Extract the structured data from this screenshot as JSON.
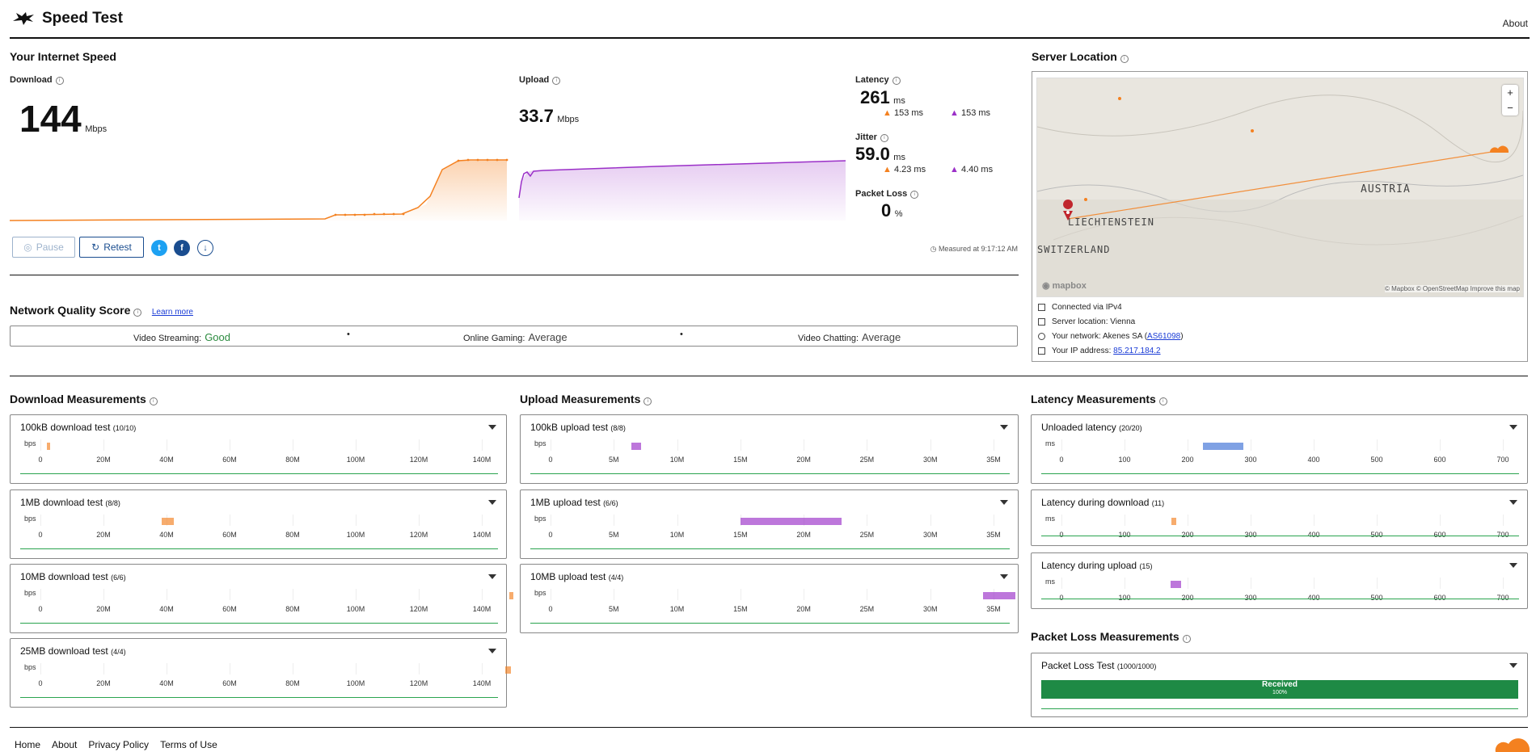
{
  "header": {
    "title": "Speed Test",
    "about": "About"
  },
  "speed": {
    "title": "Your Internet Speed",
    "download": {
      "label": "Download",
      "value": "144",
      "unit": "Mbps"
    },
    "upload": {
      "label": "Upload",
      "value": "33.7",
      "unit": "Mbps"
    },
    "latency": {
      "label": "Latency",
      "value": "261",
      "unit": "ms",
      "down": "153 ms",
      "up": "153 ms"
    },
    "jitter": {
      "label": "Jitter",
      "value": "59.0",
      "unit": "ms",
      "down": "4.23 ms",
      "up": "4.40 ms"
    },
    "packet_loss": {
      "label": "Packet Loss",
      "value": "0",
      "unit": "%"
    },
    "buttons": {
      "pause": "Pause",
      "retest": "Retest"
    },
    "measured_at": "Measured at 9:17:12 AM",
    "colors": {
      "download": "#f48120",
      "upload": "#9b30c8"
    }
  },
  "nqs": {
    "title": "Network Quality Score",
    "learn_more": "Learn more",
    "items": [
      {
        "label": "Video Streaming:",
        "value": "Good",
        "color": "#2a8a3e"
      },
      {
        "label": "Online Gaming:",
        "value": "Average",
        "color": "#444444"
      },
      {
        "label": "Video Chatting:",
        "value": "Average",
        "color": "#444444"
      }
    ]
  },
  "server": {
    "title": "Server Location",
    "map": {
      "austria": "AUSTRIA",
      "liechtenstein": "LIECHTENSTEIN",
      "switzerland": "SWITZERLAND",
      "brand": "mapbox",
      "attribution": "© Mapbox © OpenStreetMap Improve this map"
    },
    "rows": [
      {
        "text": "Connected via IPv4",
        "link": "",
        "suffix": ""
      },
      {
        "text": "Server location: Vienna",
        "link": "",
        "suffix": ""
      },
      {
        "text": "Your network: Akenes SA (",
        "link": "AS61098",
        "suffix": ")"
      },
      {
        "text": "Your IP address: ",
        "link": "85.217.184.2",
        "suffix": ""
      }
    ]
  },
  "download_meas": {
    "title": "Download Measurements",
    "unit": "bps",
    "ticks": [
      "0",
      "20M",
      "40M",
      "60M",
      "80M",
      "100M",
      "120M",
      "140M"
    ],
    "tests": [
      {
        "name": "100kB download test",
        "count": "(10/10)"
      },
      {
        "name": "1MB download test",
        "count": "(8/8)"
      },
      {
        "name": "10MB download test",
        "count": "(6/6)"
      },
      {
        "name": "25MB download test",
        "count": "(4/4)"
      }
    ]
  },
  "upload_meas": {
    "title": "Upload Measurements",
    "unit": "bps",
    "ticks": [
      "0",
      "5M",
      "10M",
      "15M",
      "20M",
      "25M",
      "30M",
      "35M"
    ],
    "tests": [
      {
        "name": "100kB upload test",
        "count": "(8/8)"
      },
      {
        "name": "1MB upload test",
        "count": "(6/6)"
      },
      {
        "name": "10MB upload test",
        "count": "(4/4)"
      }
    ]
  },
  "latency_meas": {
    "title": "Latency Measurements",
    "unit": "ms",
    "ticks": [
      "0",
      "100",
      "200",
      "300",
      "400",
      "500",
      "600",
      "700"
    ],
    "tests": [
      {
        "name": "Unloaded latency",
        "count": "(20/20)"
      },
      {
        "name": "Latency during download",
        "count": "(11)"
      },
      {
        "name": "Latency during upload",
        "count": "(15)"
      }
    ]
  },
  "packet_meas": {
    "title": "Packet Loss Measurements",
    "test": {
      "name": "Packet Loss Test",
      "count": "(1000/1000)"
    },
    "received": "Received",
    "received_pct": "100%"
  },
  "footer": {
    "links": [
      "Home",
      "About",
      "Privacy Policy",
      "Terms of Use"
    ]
  }
}
